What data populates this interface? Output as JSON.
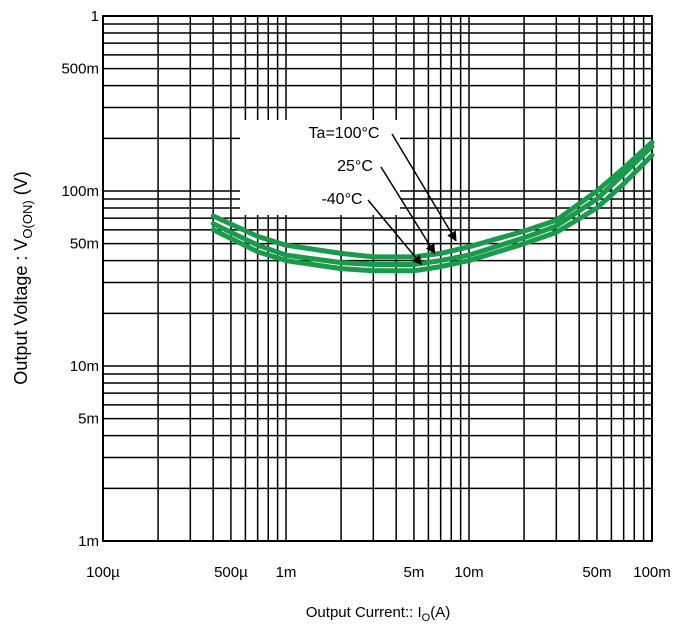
{
  "chart_data": {
    "type": "line",
    "x_scale": "log",
    "y_scale": "log",
    "xlim": [
      0.0001,
      0.1
    ],
    "ylim": [
      0.001,
      1
    ],
    "grid": true,
    "xlabel": {
      "main": "Output Current:: I",
      "sub": "O",
      "unit": "(A)"
    },
    "ylabel": {
      "main": "Output Voltage : V",
      "sub": "O(ON)",
      "unit": " (V)"
    },
    "x_ticks": [
      {
        "value": 0.0001,
        "label": "100µ"
      },
      {
        "value": 0.0005,
        "label": "500µ"
      },
      {
        "value": 0.001,
        "label": "1m"
      },
      {
        "value": 0.005,
        "label": "5m"
      },
      {
        "value": 0.01,
        "label": "10m"
      },
      {
        "value": 0.05,
        "label": "50m"
      },
      {
        "value": 0.1,
        "label": "100m"
      }
    ],
    "y_ticks": [
      {
        "value": 1,
        "label": "1"
      },
      {
        "value": 0.5,
        "label": "500m"
      },
      {
        "value": 0.1,
        "label": "100m"
      },
      {
        "value": 0.05,
        "label": "50m"
      },
      {
        "value": 0.01,
        "label": "10m"
      },
      {
        "value": 0.005,
        "label": "5m"
      },
      {
        "value": 0.001,
        "label": "1m"
      }
    ],
    "series": [
      {
        "name": "Ta=100°C",
        "color": "#1a9a4c",
        "points": [
          [
            0.0004,
            0.06
          ],
          [
            0.0007,
            0.045
          ],
          [
            0.001,
            0.04
          ],
          [
            0.002,
            0.036
          ],
          [
            0.003,
            0.035
          ],
          [
            0.005,
            0.035
          ],
          [
            0.007,
            0.037
          ],
          [
            0.01,
            0.04
          ],
          [
            0.02,
            0.05
          ],
          [
            0.03,
            0.058
          ],
          [
            0.05,
            0.08
          ],
          [
            0.07,
            0.11
          ],
          [
            0.1,
            0.16
          ]
        ]
      },
      {
        "name": "25°C",
        "color": "#1a9a4c",
        "points": [
          [
            0.0004,
            0.065
          ],
          [
            0.0007,
            0.049
          ],
          [
            0.001,
            0.043
          ],
          [
            0.002,
            0.039
          ],
          [
            0.003,
            0.038
          ],
          [
            0.005,
            0.038
          ],
          [
            0.007,
            0.04
          ],
          [
            0.01,
            0.043
          ],
          [
            0.02,
            0.054
          ],
          [
            0.03,
            0.063
          ],
          [
            0.05,
            0.09
          ],
          [
            0.07,
            0.125
          ],
          [
            0.1,
            0.18
          ]
        ]
      },
      {
        "name": "-40°C",
        "color": "#1a9a4c",
        "points": [
          [
            0.0004,
            0.072
          ],
          [
            0.0007,
            0.055
          ],
          [
            0.001,
            0.049
          ],
          [
            0.002,
            0.044
          ],
          [
            0.003,
            0.042
          ],
          [
            0.005,
            0.042
          ],
          [
            0.007,
            0.044
          ],
          [
            0.01,
            0.048
          ],
          [
            0.02,
            0.059
          ],
          [
            0.03,
            0.068
          ],
          [
            0.05,
            0.1
          ],
          [
            0.07,
            0.135
          ],
          [
            0.1,
            0.19
          ]
        ]
      }
    ],
    "annotations": [
      {
        "text": "Ta=100°C",
        "x": 0.0085,
        "y": 0.052
      },
      {
        "text": "25°C",
        "x": 0.0065,
        "y": 0.044
      },
      {
        "text": "-40°C",
        "x": 0.0055,
        "y": 0.038
      }
    ]
  }
}
